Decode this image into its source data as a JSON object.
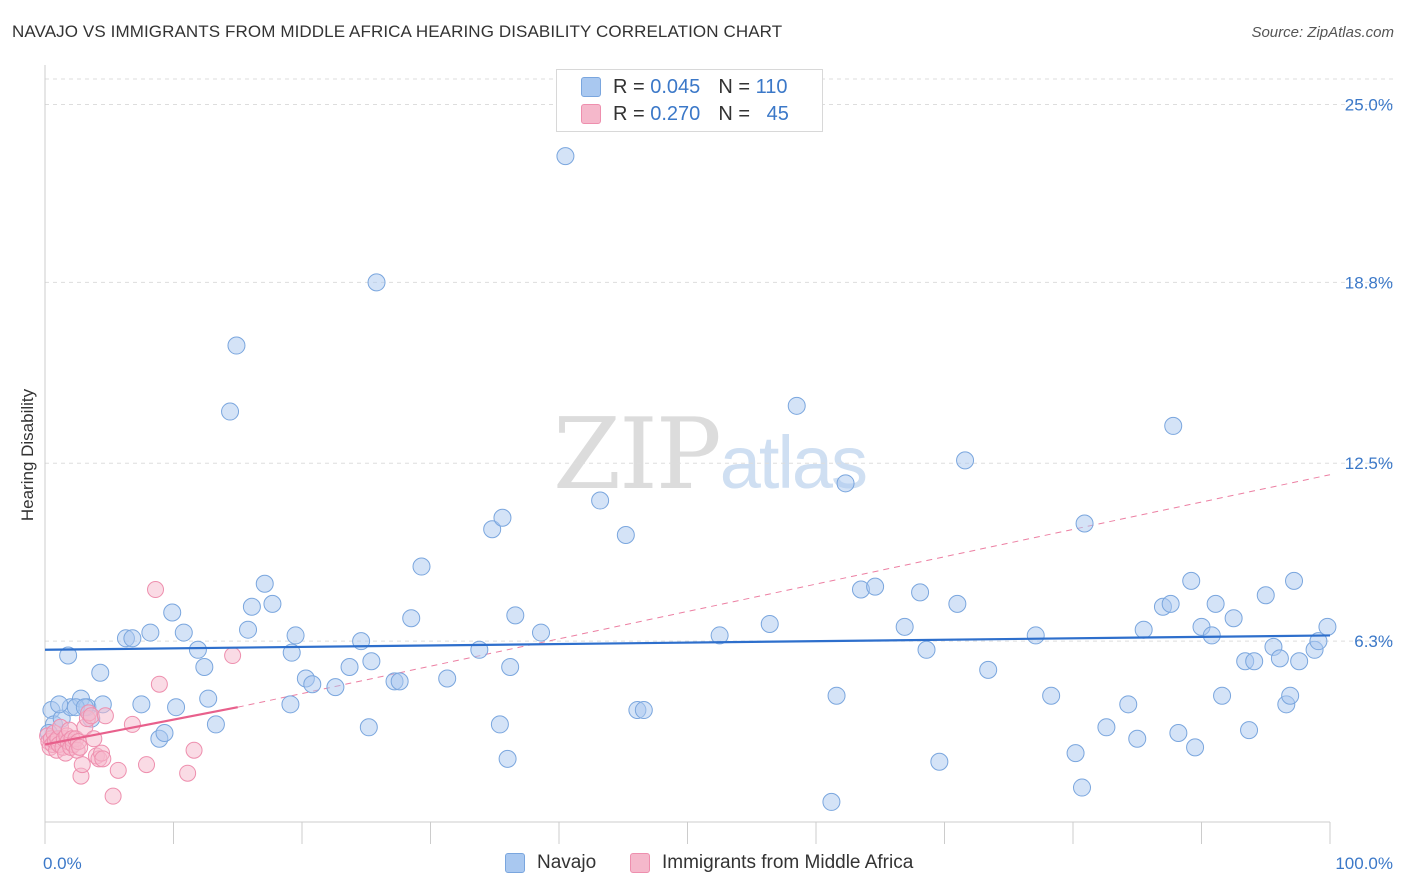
{
  "header": {
    "title": "NAVAJO VS IMMIGRANTS FROM MIDDLE AFRICA HEARING DISABILITY CORRELATION CHART",
    "source": "Source: ZipAtlas.com"
  },
  "watermark": {
    "part1": "ZIP",
    "part2": "atlas"
  },
  "legend": {
    "rows": [
      {
        "r_label": "R = ",
        "r_value": "0.045",
        "n_label": "N = ",
        "n_value": "110",
        "color": "#a9c8f0"
      },
      {
        "r_label": "R = ",
        "r_value": "0.270",
        "n_label": "N = ",
        "n_value": "45",
        "color": "#f5b8cb"
      }
    ]
  },
  "colors": {
    "navajo_fill": "#a9c8f0",
    "navajo_stroke": "#7aa6de",
    "navajo_line": "#2e6fcc",
    "imm_fill": "#f5b8cb",
    "imm_stroke": "#ee8fae",
    "imm_line": "#e8608c",
    "grid": "#dddddd",
    "axis_text": "#3b78c8"
  },
  "chart_data": {
    "type": "scatter",
    "title": "NAVAJO VS IMMIGRANTS FROM MIDDLE AFRICA HEARING DISABILITY CORRELATION CHART",
    "xlabel": "",
    "ylabel": "Hearing Disability",
    "xlim": [
      0,
      100
    ],
    "ylim": [
      0,
      26.2
    ],
    "x_tick_labels": [
      "0.0%",
      "100.0%"
    ],
    "y_ticks": [
      6.3,
      12.5,
      18.8,
      25.0
    ],
    "y_tick_labels": [
      "6.3%",
      "12.5%",
      "18.8%",
      "25.0%"
    ],
    "grid": true,
    "legend_position": "top-center",
    "series": [
      {
        "name": "Navajo",
        "R": 0.045,
        "N": 110,
        "trend": {
          "x": [
            0,
            100
          ],
          "y": [
            6.0,
            6.5
          ],
          "style": "solid"
        },
        "points": [
          [
            0.5,
            3.9
          ],
          [
            0.7,
            3.4
          ],
          [
            1.3,
            3.6
          ],
          [
            1.8,
            5.8
          ],
          [
            2.0,
            4.0
          ],
          [
            2.8,
            4.3
          ],
          [
            3.3,
            4.0
          ],
          [
            3.6,
            3.6
          ],
          [
            4.3,
            5.2
          ],
          [
            4.5,
            4.1
          ],
          [
            6.3,
            6.4
          ],
          [
            6.8,
            6.4
          ],
          [
            7.5,
            4.1
          ],
          [
            8.2,
            6.6
          ],
          [
            8.9,
            2.9
          ],
          [
            9.3,
            3.1
          ],
          [
            9.9,
            7.3
          ],
          [
            10.2,
            4.0
          ],
          [
            10.8,
            6.6
          ],
          [
            11.9,
            6.0
          ],
          [
            12.4,
            5.4
          ],
          [
            12.7,
            4.3
          ],
          [
            13.3,
            3.4
          ],
          [
            14.4,
            14.3
          ],
          [
            14.9,
            16.6
          ],
          [
            15.8,
            6.7
          ],
          [
            16.1,
            7.5
          ],
          [
            17.1,
            8.3
          ],
          [
            17.7,
            7.6
          ],
          [
            19.1,
            4.1
          ],
          [
            19.2,
            5.9
          ],
          [
            19.5,
            6.5
          ],
          [
            20.3,
            5.0
          ],
          [
            20.8,
            4.8
          ],
          [
            22.6,
            4.7
          ],
          [
            23.7,
            5.4
          ],
          [
            24.6,
            6.3
          ],
          [
            25.2,
            3.3
          ],
          [
            25.4,
            5.6
          ],
          [
            25.8,
            18.8
          ],
          [
            27.2,
            4.9
          ],
          [
            27.6,
            4.9
          ],
          [
            28.5,
            7.1
          ],
          [
            29.3,
            8.9
          ],
          [
            31.3,
            5.0
          ],
          [
            33.8,
            6.0
          ],
          [
            34.8,
            10.2
          ],
          [
            35.4,
            3.4
          ],
          [
            35.6,
            10.6
          ],
          [
            36.0,
            2.2
          ],
          [
            36.2,
            5.4
          ],
          [
            36.6,
            7.2
          ],
          [
            38.6,
            6.6
          ],
          [
            40.5,
            23.2
          ],
          [
            43.2,
            11.2
          ],
          [
            45.2,
            10.0
          ],
          [
            46.1,
            3.9
          ],
          [
            46.6,
            3.9
          ],
          [
            52.5,
            6.5
          ],
          [
            56.4,
            6.9
          ],
          [
            58.5,
            14.5
          ],
          [
            61.2,
            0.7
          ],
          [
            61.6,
            4.4
          ],
          [
            62.3,
            11.8
          ],
          [
            63.5,
            8.1
          ],
          [
            64.6,
            8.2
          ],
          [
            66.9,
            6.8
          ],
          [
            68.1,
            8.0
          ],
          [
            68.6,
            6.0
          ],
          [
            69.6,
            2.1
          ],
          [
            71.0,
            7.6
          ],
          [
            71.6,
            12.6
          ],
          [
            73.4,
            5.3
          ],
          [
            77.1,
            6.5
          ],
          [
            78.3,
            4.4
          ],
          [
            80.2,
            2.4
          ],
          [
            80.7,
            1.2
          ],
          [
            80.9,
            10.4
          ],
          [
            82.6,
            3.3
          ],
          [
            84.3,
            4.1
          ],
          [
            85.0,
            2.9
          ],
          [
            85.5,
            6.7
          ],
          [
            87.0,
            7.5
          ],
          [
            87.6,
            7.6
          ],
          [
            87.8,
            13.8
          ],
          [
            88.2,
            3.1
          ],
          [
            89.2,
            8.4
          ],
          [
            89.5,
            2.6
          ],
          [
            90.0,
            6.8
          ],
          [
            90.8,
            6.5
          ],
          [
            91.1,
            7.6
          ],
          [
            91.6,
            4.4
          ],
          [
            92.5,
            7.1
          ],
          [
            93.4,
            5.6
          ],
          [
            93.7,
            3.2
          ],
          [
            94.1,
            5.6
          ],
          [
            95.0,
            7.9
          ],
          [
            95.6,
            6.1
          ],
          [
            96.1,
            5.7
          ],
          [
            96.6,
            4.1
          ],
          [
            96.9,
            4.4
          ],
          [
            97.2,
            8.4
          ],
          [
            97.6,
            5.6
          ],
          [
            98.8,
            6.0
          ],
          [
            99.1,
            6.3
          ],
          [
            99.8,
            6.8
          ],
          [
            0.3,
            3.1
          ],
          [
            1.1,
            4.1
          ],
          [
            2.4,
            4.0
          ],
          [
            3.1,
            4.0
          ]
        ]
      },
      {
        "name": "Immigrants from Middle Africa",
        "R": 0.27,
        "N": 45,
        "trend": {
          "x": [
            0,
            15
          ],
          "y": [
            2.7,
            4.0
          ],
          "style": "solid"
        },
        "trend_extended": {
          "x": [
            15,
            100
          ],
          "y": [
            4.0,
            12.1
          ],
          "style": "dashed"
        },
        "points": [
          [
            0.2,
            3.0
          ],
          [
            0.3,
            2.8
          ],
          [
            0.4,
            2.6
          ],
          [
            0.5,
            2.9
          ],
          [
            0.6,
            2.7
          ],
          [
            0.7,
            3.1
          ],
          [
            0.8,
            2.8
          ],
          [
            0.9,
            2.5
          ],
          [
            1.0,
            2.9
          ],
          [
            1.1,
            2.7
          ],
          [
            1.2,
            3.3
          ],
          [
            1.4,
            2.6
          ],
          [
            1.5,
            2.9
          ],
          [
            1.6,
            2.4
          ],
          [
            1.7,
            3.0
          ],
          [
            1.8,
            2.8
          ],
          [
            1.9,
            3.2
          ],
          [
            2.0,
            2.6
          ],
          [
            2.1,
            2.9
          ],
          [
            2.2,
            2.7
          ],
          [
            2.4,
            2.9
          ],
          [
            2.5,
            2.5
          ],
          [
            2.6,
            2.8
          ],
          [
            2.7,
            2.6
          ],
          [
            2.8,
            1.6
          ],
          [
            2.9,
            2.0
          ],
          [
            3.1,
            3.3
          ],
          [
            3.3,
            3.6
          ],
          [
            3.4,
            3.8
          ],
          [
            3.6,
            3.7
          ],
          [
            3.8,
            2.9
          ],
          [
            4.0,
            2.3
          ],
          [
            4.2,
            2.2
          ],
          [
            4.4,
            2.4
          ],
          [
            4.5,
            2.2
          ],
          [
            4.7,
            3.7
          ],
          [
            5.3,
            0.9
          ],
          [
            5.7,
            1.8
          ],
          [
            6.8,
            3.4
          ],
          [
            7.9,
            2.0
          ],
          [
            8.6,
            8.1
          ],
          [
            8.9,
            4.8
          ],
          [
            11.1,
            1.7
          ],
          [
            11.6,
            2.5
          ],
          [
            14.6,
            5.8
          ]
        ]
      }
    ]
  },
  "bottom_legend": {
    "items": [
      "Navajo",
      "Immigrants from Middle Africa"
    ]
  }
}
